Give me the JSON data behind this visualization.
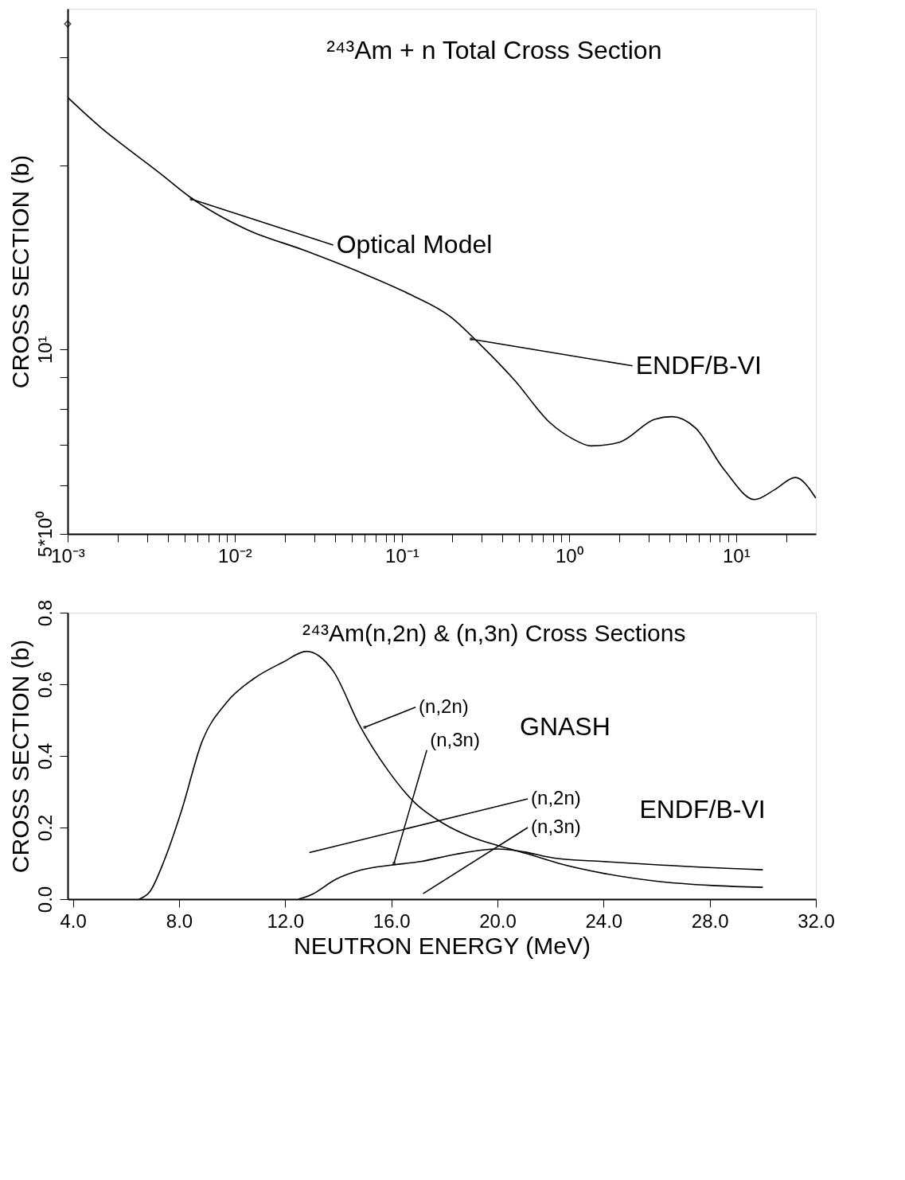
{
  "chart_data": [
    {
      "type": "line",
      "title": "²⁴³Am + n Total  Cross Section",
      "ylabel": "CROSS SECTION (b)",
      "log": "xy",
      "xlim": [
        0.001,
        30
      ],
      "ylim": [
        5,
        36
      ],
      "xticks": [
        {
          "value": 0.001,
          "label": "10⁻³"
        },
        {
          "value": 0.002,
          "label": null
        },
        {
          "value": 0.003,
          "label": null
        },
        {
          "value": 0.004,
          "label": null
        },
        {
          "value": 0.005,
          "label": null
        },
        {
          "value": 0.006,
          "label": null
        },
        {
          "value": 0.007,
          "label": null
        },
        {
          "value": 0.008,
          "label": null
        },
        {
          "value": 0.009,
          "label": null
        },
        {
          "value": 0.01,
          "label": "10⁻²"
        },
        {
          "value": 0.02,
          "label": null
        },
        {
          "value": 0.03,
          "label": null
        },
        {
          "value": 0.04,
          "label": null
        },
        {
          "value": 0.05,
          "label": null
        },
        {
          "value": 0.06,
          "label": null
        },
        {
          "value": 0.07,
          "label": null
        },
        {
          "value": 0.08,
          "label": null
        },
        {
          "value": 0.09,
          "label": null
        },
        {
          "value": 0.1,
          "label": "10⁻¹"
        },
        {
          "value": 0.2,
          "label": null
        },
        {
          "value": 0.3,
          "label": null
        },
        {
          "value": 0.4,
          "label": null
        },
        {
          "value": 0.5,
          "label": null
        },
        {
          "value": 0.6,
          "label": null
        },
        {
          "value": 0.7,
          "label": null
        },
        {
          "value": 0.8,
          "label": null
        },
        {
          "value": 0.9,
          "label": null
        },
        {
          "value": 1,
          "label": "10⁰"
        },
        {
          "value": 2,
          "label": null
        },
        {
          "value": 3,
          "label": null
        },
        {
          "value": 4,
          "label": null
        },
        {
          "value": 5,
          "label": null
        },
        {
          "value": 6,
          "label": null
        },
        {
          "value": 7,
          "label": null
        },
        {
          "value": 8,
          "label": null
        },
        {
          "value": 9,
          "label": null
        },
        {
          "value": 10,
          "label": "10¹"
        },
        {
          "value": 20,
          "label": null
        }
      ],
      "yticks": [
        {
          "value": 5,
          "label": "5*10⁰"
        },
        {
          "value": 6,
          "label": null
        },
        {
          "value": 7,
          "label": null
        },
        {
          "value": 8,
          "label": null
        },
        {
          "value": 9,
          "label": null
        },
        {
          "value": 10,
          "label": "10¹"
        },
        {
          "value": 20,
          "label": null
        },
        {
          "value": 30,
          "label": null
        }
      ],
      "grid": false,
      "series": [
        {
          "color": "#000000",
          "x": [
            0.001,
            0.00159,
            0.00238,
            0.00356,
            0.0053,
            0.0079,
            0.0118,
            0.0264,
            0.0589,
            0.112,
            0.196,
            0.293,
            0.474,
            0.767,
            1.06,
            1.35,
            2.01,
            3.25,
            4.14,
            5.7,
            8.5,
            12.9,
            17.1,
            22.6,
            30
          ],
          "values": [
            25.8,
            23.0,
            21.1,
            19.4,
            17.8,
            16.6,
            15.7,
            14.5,
            13.3,
            12.3,
            11.3,
            10.2,
            8.9,
            7.6,
            7.14,
            6.96,
            7.06,
            7.69,
            7.77,
            7.45,
            6.36,
            5.69,
            5.91,
            6.18,
            5.72
          ]
        },
        {
          "type": "scatter",
          "marker": "diamond",
          "color": "#000000",
          "x": [
            0.001
          ],
          "values": [
            34
          ]
        }
      ],
      "annotations": [
        {
          "text": "Optical Model",
          "x": 0.0055,
          "y": 17.6
        },
        {
          "text": "ENDF/B-VI",
          "x": 0.26,
          "y": 10.4
        }
      ]
    },
    {
      "type": "line",
      "title": "²⁴³Am(n,2n) & (n,3n) Cross Sections",
      "xlabel": "NEUTRON ENERGY (MeV)",
      "ylabel": "CROSS SECTION (b)",
      "xlim": [
        3.8,
        32
      ],
      "ylim": [
        0,
        0.8
      ],
      "xticks": [
        {
          "value": 4,
          "label": "4.0"
        },
        {
          "value": 8,
          "label": "8.0"
        },
        {
          "value": 12,
          "label": "12.0"
        },
        {
          "value": 16,
          "label": "16.0"
        },
        {
          "value": 20,
          "label": "20.0"
        },
        {
          "value": 24,
          "label": "24.0"
        },
        {
          "value": 28,
          "label": "28.0"
        },
        {
          "value": 32,
          "label": "32.0"
        }
      ],
      "yticks": [
        {
          "value": 0,
          "label": "0.0"
        },
        {
          "value": 0.2,
          "label": "0.2"
        },
        {
          "value": 0.4,
          "label": "0.4"
        },
        {
          "value": 0.6,
          "label": "0.6"
        },
        {
          "value": 0.8,
          "label": "0.8"
        }
      ],
      "grid": false,
      "series": [
        {
          "color": "#000000",
          "x": [
            6.5,
            6.9,
            7.45,
            8.1,
            8.85,
            9.8,
            10.8,
            11.9,
            12.8,
            13.8,
            14.8,
            15.85,
            16.9,
            17.9,
            19.0,
            20.0,
            21.2,
            22.3,
            24.0,
            26.0,
            28.1,
            30.0
          ],
          "values": [
            0,
            0.021,
            0.11,
            0.249,
            0.437,
            0.55,
            0.615,
            0.661,
            0.692,
            0.638,
            0.486,
            0.362,
            0.268,
            0.214,
            0.174,
            0.15,
            0.125,
            0.1,
            0.072,
            0.05,
            0.038,
            0.033
          ]
        },
        {
          "color": "#000000",
          "x": [
            12.5,
            13.0,
            13.9,
            14.9,
            16.0,
            17.1,
            18.4,
            20.0,
            21.0,
            22.1,
            24.0,
            26.2,
            30.0
          ],
          "values": [
            0,
            0.013,
            0.055,
            0.082,
            0.095,
            0.105,
            0.125,
            0.14,
            0.132,
            0.115,
            0.105,
            0.095,
            0.082
          ]
        }
      ],
      "annotations": [
        "GNASH",
        {
          "text": "(n,2n)",
          "x": 15.0,
          "y": 0.48
        },
        {
          "text": "(n,3n)",
          "x": 16.1,
          "y": 0.1
        },
        "ENDF/B-VI",
        "(n,2n)",
        "(n,3n)"
      ]
    }
  ]
}
